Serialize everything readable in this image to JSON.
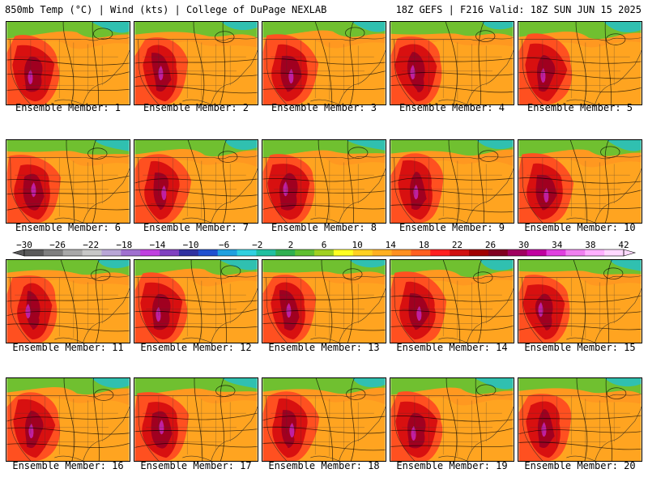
{
  "header": {
    "left": "850mb Temp (°C) | Wind (kts) | College of DuPage NEXLAB",
    "right": "18Z GEFS | F216 Valid: 18Z SUN JUN 15 2025"
  },
  "panels": [
    {
      "label": "Ensemble Member: 1"
    },
    {
      "label": "Ensemble Member: 2"
    },
    {
      "label": "Ensemble Member: 3"
    },
    {
      "label": "Ensemble Member: 4"
    },
    {
      "label": "Ensemble Member: 5"
    },
    {
      "label": "Ensemble Member: 6"
    },
    {
      "label": "Ensemble Member: 7"
    },
    {
      "label": "Ensemble Member: 8"
    },
    {
      "label": "Ensemble Member: 9"
    },
    {
      "label": "Ensemble Member: 10"
    },
    {
      "label": "Ensemble Member: 11"
    },
    {
      "label": "Ensemble Member: 12"
    },
    {
      "label": "Ensemble Member: 13"
    },
    {
      "label": "Ensemble Member: 14"
    },
    {
      "label": "Ensemble Member: 15"
    },
    {
      "label": "Ensemble Member: 16"
    },
    {
      "label": "Ensemble Member: 17"
    },
    {
      "label": "Ensemble Member: 18"
    },
    {
      "label": "Ensemble Member: 19"
    },
    {
      "label": "Ensemble Member: 20"
    }
  ],
  "colorbar": {
    "ticks": [
      "−30",
      "−26",
      "−22",
      "−18",
      "−14",
      "−10",
      "−6",
      "−2",
      "2",
      "6",
      "10",
      "14",
      "18",
      "22",
      "26",
      "30",
      "34",
      "38",
      "42"
    ],
    "colors": [
      "#5a5a5a",
      "#7f7f7f",
      "#a8a8a8",
      "#c8c8c8",
      "#b9a6d6",
      "#a070d0",
      "#c040e0",
      "#8040c0",
      "#3030a0",
      "#2050d0",
      "#20a0e0",
      "#30d0e0",
      "#20c0a0",
      "#30b050",
      "#60c030",
      "#a0d020",
      "#ffff20",
      "#ffd020",
      "#ffb020",
      "#ff9020",
      "#ff6020",
      "#ff2020",
      "#d01010",
      "#a00000",
      "#800020",
      "#a00060",
      "#c000a0",
      "#e040e0",
      "#f080f0",
      "#ffb0ff",
      "#ffd8ff"
    ]
  }
}
